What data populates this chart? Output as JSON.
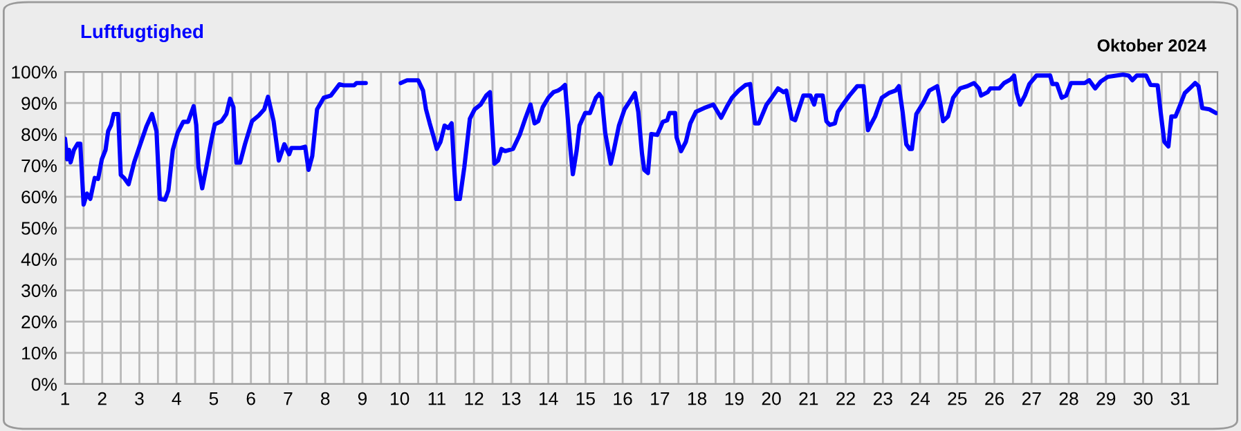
{
  "chart_data": {
    "type": "line",
    "title": "Luftfugtighed",
    "subtitle": "Oktober 2024",
    "xlim": [
      1,
      32
    ],
    "ylim": [
      0,
      100
    ],
    "xticks": [
      1,
      {
        "value": 1.5,
        "label": null
      },
      2,
      {
        "value": 2.5,
        "label": null
      },
      3,
      {
        "value": 3.5,
        "label": null
      },
      4,
      {
        "value": 4.5,
        "label": null
      },
      5,
      {
        "value": 5.5,
        "label": null
      },
      6,
      {
        "value": 6.5,
        "label": null
      },
      7,
      {
        "value": 7.5,
        "label": null
      },
      8,
      {
        "value": 8.5,
        "label": null
      },
      9,
      {
        "value": 9.5,
        "label": null
      },
      10,
      {
        "value": 10.5,
        "label": null
      },
      11,
      {
        "value": 11.5,
        "label": null
      },
      12,
      {
        "value": 12.5,
        "label": null
      },
      13,
      {
        "value": 13.5,
        "label": null
      },
      14,
      {
        "value": 14.5,
        "label": null
      },
      15,
      {
        "value": 15.5,
        "label": null
      },
      16,
      {
        "value": 16.5,
        "label": null
      },
      17,
      {
        "value": 17.5,
        "label": null
      },
      18,
      {
        "value": 18.5,
        "label": null
      },
      19,
      {
        "value": 19.5,
        "label": null
      },
      20,
      {
        "value": 20.5,
        "label": null
      },
      21,
      {
        "value": 21.5,
        "label": null
      },
      22,
      {
        "value": 22.5,
        "label": null
      },
      23,
      {
        "value": 23.5,
        "label": null
      },
      24,
      {
        "value": 24.5,
        "label": null
      },
      25,
      {
        "value": 25.5,
        "label": null
      },
      26,
      {
        "value": 26.5,
        "label": null
      },
      27,
      {
        "value": 27.5,
        "label": null
      },
      28,
      {
        "value": 28.5,
        "label": null
      },
      29,
      {
        "value": 29.5,
        "label": null
      },
      30,
      {
        "value": 30.5,
        "label": null
      },
      31,
      {
        "value": 31.5,
        "label": null
      }
    ],
    "yticks": [
      {
        "value": 0,
        "label": "0%"
      },
      {
        "value": 10,
        "label": "10%"
      },
      {
        "value": 20,
        "label": "20%"
      },
      {
        "value": 30,
        "label": "30%"
      },
      {
        "value": 40,
        "label": "40%"
      },
      {
        "value": 50,
        "label": "50%"
      },
      {
        "value": 60,
        "label": "60%"
      },
      {
        "value": 70,
        "label": "70%"
      },
      {
        "value": 80,
        "label": "80%"
      },
      {
        "value": 90,
        "label": "90%"
      },
      {
        "value": 100,
        "label": "100%"
      }
    ],
    "grid": true,
    "legend": false,
    "marker": "none",
    "line_style": "solid",
    "series": [
      {
        "color": "#0000ff",
        "x": [
          1.0,
          1.06,
          1.11,
          1.15,
          1.24,
          1.34,
          1.41,
          1.5,
          1.59,
          1.68,
          1.8,
          1.89,
          1.99,
          2.09,
          2.16,
          2.24,
          2.31,
          2.43,
          2.5,
          2.59,
          2.71,
          2.86,
          3.03,
          3.19,
          3.34,
          3.46,
          3.55,
          3.69,
          3.78,
          3.9,
          4.03,
          4.18,
          4.31,
          4.46,
          4.53,
          4.59,
          4.69,
          4.8,
          4.94,
          5.03,
          5.21,
          5.34,
          5.44,
          5.53,
          5.61,
          5.71,
          5.84,
          6.03,
          6.21,
          6.36,
          6.46,
          6.61,
          6.75,
          6.9,
          7.03,
          7.09,
          7.34,
          7.46,
          7.55,
          7.65,
          7.78,
          7.96,
          8.15,
          8.38,
          8.49,
          8.78,
          8.84,
          9.09,
          9.5,
          10.03,
          10.2,
          10.5,
          10.63,
          10.71,
          10.81,
          10.9,
          11.0,
          11.1,
          11.21,
          11.31,
          11.4,
          11.46,
          11.52,
          11.62,
          11.74,
          11.89,
          12.02,
          12.18,
          12.33,
          12.43,
          12.55,
          12.65,
          12.74,
          12.84,
          13.05,
          13.23,
          13.38,
          13.52,
          13.63,
          13.73,
          13.85,
          14.0,
          14.14,
          14.26,
          14.35,
          14.45,
          14.53,
          14.6,
          14.66,
          14.76,
          14.84,
          14.99,
          15.12,
          15.28,
          15.37,
          15.44,
          15.53,
          15.68,
          15.77,
          15.9,
          16.05,
          16.17,
          16.33,
          16.42,
          16.52,
          16.58,
          16.68,
          16.77,
          16.93,
          17.08,
          17.2,
          17.26,
          17.41,
          17.45,
          17.57,
          17.7,
          17.82,
          17.97,
          18.19,
          18.44,
          18.65,
          18.81,
          18.94,
          19.12,
          19.31,
          19.43,
          19.56,
          19.66,
          19.87,
          19.99,
          20.18,
          20.33,
          20.4,
          20.55,
          20.64,
          20.86,
          21.05,
          21.15,
          21.21,
          21.38,
          21.48,
          21.57,
          21.71,
          21.79,
          21.92,
          22.1,
          22.31,
          22.48,
          22.6,
          22.66,
          22.79,
          22.97,
          23.16,
          23.34,
          23.43,
          23.53,
          23.63,
          23.72,
          23.78,
          23.9,
          24.09,
          24.25,
          24.46,
          24.52,
          24.62,
          24.75,
          24.89,
          25.08,
          25.27,
          25.45,
          25.58,
          25.64,
          25.82,
          25.89,
          26.13,
          26.26,
          26.44,
          26.53,
          26.6,
          26.69,
          26.82,
          26.94,
          27.13,
          27.5,
          27.56,
          27.68,
          27.81,
          27.93,
          28.06,
          28.43,
          28.55,
          28.71,
          28.86,
          29.05,
          29.46,
          29.61,
          29.71,
          29.83,
          30.08,
          30.2,
          30.39,
          30.47,
          30.57,
          30.68,
          30.76,
          30.87,
          31.0,
          31.12,
          31.28,
          31.4,
          31.49,
          31.59,
          31.78,
          31.96
        ],
        "values": [
          78.6,
          72,
          75,
          71,
          75,
          77,
          77,
          57.5,
          61,
          59.3,
          66,
          65.7,
          72,
          75,
          81,
          83,
          86.5,
          86.5,
          67,
          66,
          64,
          71,
          77,
          82.5,
          86.5,
          81,
          59.3,
          59,
          62,
          75,
          80.5,
          84,
          84,
          89,
          83,
          69.4,
          62.7,
          69.4,
          78.3,
          83.2,
          84.2,
          86.5,
          91.4,
          88.7,
          70.9,
          70.9,
          76.8,
          84.2,
          86,
          88,
          92,
          84.2,
          71.6,
          76.8,
          73.6,
          75.6,
          75.6,
          76,
          68.6,
          73,
          88,
          91.7,
          92.4,
          96,
          95.7,
          95.7,
          96.4,
          96.4,
          null,
          96.4,
          97.3,
          97.3,
          94,
          88,
          83.5,
          79.8,
          75.3,
          77.6,
          82.8,
          82,
          83.5,
          70.9,
          59.3,
          59.3,
          69.4,
          85,
          88,
          89.5,
          92.4,
          93.5,
          70.6,
          71.6,
          75.3,
          74.6,
          75.3,
          79.8,
          85,
          89.5,
          83.5,
          84.2,
          88.7,
          91.7,
          93.5,
          94,
          94.7,
          95.8,
          84.2,
          74.6,
          67.2,
          74.6,
          82.8,
          86.8,
          86.8,
          91.7,
          92.9,
          91.7,
          80.5,
          70.6,
          75.3,
          82.8,
          88,
          90.2,
          93.2,
          87.2,
          73.8,
          68.6,
          67.6,
          80.1,
          79.8,
          84,
          84.5,
          86.8,
          86.8,
          79,
          74.6,
          77.6,
          83.5,
          87.2,
          88.4,
          89.5,
          85.3,
          89,
          91.7,
          94,
          95.8,
          96.1,
          83.5,
          83.5,
          89.5,
          91.4,
          94.7,
          93.5,
          94,
          85,
          84.5,
          92.4,
          92.4,
          89.5,
          92.4,
          92.4,
          84.2,
          83,
          83.5,
          87.2,
          89.5,
          92.4,
          95.4,
          95.4,
          81.3,
          82.8,
          85.7,
          91.7,
          93.2,
          94,
          95.4,
          87.2,
          76.8,
          75.3,
          75.3,
          86.5,
          90.2,
          94,
          95.4,
          91.7,
          84.2,
          85.7,
          91.7,
          94.7,
          95.4,
          96.4,
          94.7,
          92.4,
          93.5,
          94.7,
          94.7,
          96.4,
          97.6,
          98.8,
          93.2,
          89.5,
          92.4,
          96.1,
          98.8,
          98.8,
          96.1,
          96.1,
          91.7,
          92.4,
          96.4,
          96.4,
          97.3,
          94.7,
          96.9,
          98.4,
          99.1,
          98.8,
          97.3,
          98.8,
          98.8,
          95.8,
          95.7,
          87.2,
          77.6,
          76.1,
          85.7,
          85.7,
          89.5,
          93.2,
          95,
          96.4,
          95.4,
          88.4,
          88,
          86.8
        ]
      }
    ]
  }
}
